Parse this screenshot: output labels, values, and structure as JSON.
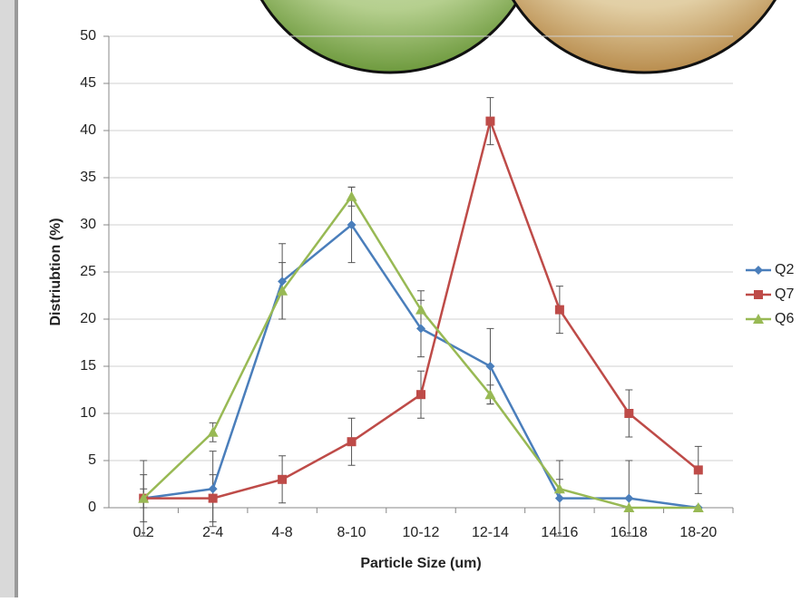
{
  "chart_data": {
    "type": "line",
    "x_label": "Particle Size (um)",
    "y_label": "Distriubtion (%)",
    "categories": [
      "0-2",
      "2-4",
      "4-8",
      "8-10",
      "10-12",
      "12-14",
      "14-16",
      "16-18",
      "18-20"
    ],
    "series": [
      {
        "name": "Q2",
        "color": "#4a7ebb",
        "marker": "diamond",
        "values": [
          1,
          2,
          24,
          30,
          19,
          15,
          1,
          1,
          0
        ],
        "errors": [
          4,
          4,
          4,
          4,
          3,
          4,
          4,
          4,
          0
        ]
      },
      {
        "name": "Q7",
        "color": "#be4b48",
        "marker": "square",
        "values": [
          1,
          1,
          3,
          7,
          12,
          41,
          21,
          10,
          4
        ],
        "errors": [
          2.5,
          2.5,
          2.5,
          2.5,
          2.5,
          2.5,
          2.5,
          2.5,
          2.5
        ]
      },
      {
        "name": "Q6",
        "color": "#98b954",
        "marker": "triangle",
        "values": [
          1,
          8,
          23,
          33,
          21,
          12,
          2,
          0,
          0
        ],
        "errors": [
          1,
          1,
          3,
          1,
          2,
          1,
          1,
          0,
          0
        ]
      }
    ],
    "ylim": [
      0,
      50
    ],
    "yticks": [
      0,
      5,
      10,
      15,
      20,
      25,
      30,
      35,
      40,
      45,
      50
    ],
    "grid": true,
    "legend": "right"
  }
}
